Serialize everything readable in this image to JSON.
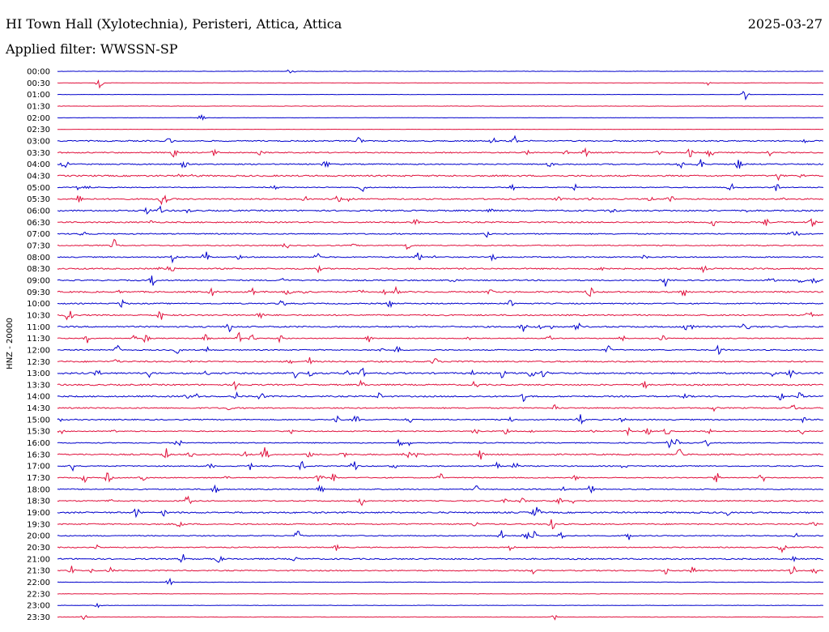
{
  "header": {
    "station": "HI Town Hall (Xylotechnia), Peristeri, Attica, Attica",
    "date": "2025-03-27",
    "filter": "Applied filter: WWSSN-SP"
  },
  "chart_data": {
    "type": "line",
    "title": "HI Town Hall (Xylotechnia), Peristeri, Attica, Attica",
    "ylabel": "HNZ - 20000",
    "row_labels": [
      "00:00",
      "00:30",
      "01:00",
      "01:30",
      "02:00",
      "02:30",
      "03:00",
      "03:30",
      "04:00",
      "04:30",
      "05:00",
      "05:30",
      "06:00",
      "06:30",
      "07:00",
      "07:30",
      "08:00",
      "08:30",
      "09:00",
      "09:30",
      "10:00",
      "10:30",
      "11:00",
      "11:30",
      "12:00",
      "12:30",
      "13:00",
      "13:30",
      "14:00",
      "14:30",
      "15:00",
      "15:30",
      "16:00",
      "16:30",
      "17:00",
      "17:30",
      "18:00",
      "18:30",
      "19:00",
      "19:30",
      "20:00",
      "20:30",
      "21:00",
      "21:30",
      "22:00",
      "22:30",
      "23:00",
      "23:30"
    ],
    "colors": [
      "#0000cc",
      "#e0103c"
    ],
    "grid": false
  }
}
